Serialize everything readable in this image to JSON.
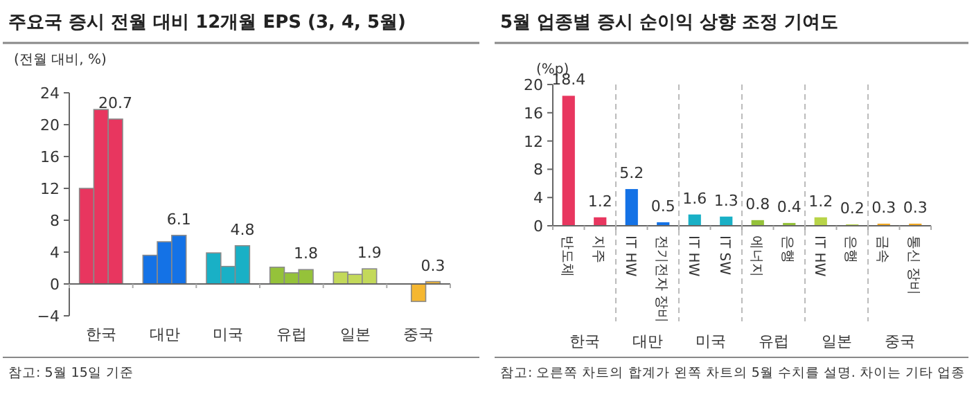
{
  "chart_data": [
    {
      "type": "bar",
      "title": "주요국 증시 전월 대비 12개월 EPS (3, 4, 5월)",
      "ylabel": "(전월 대비, %)",
      "categories": [
        "한국",
        "대만",
        "미국",
        "유럽",
        "일본",
        "중국"
      ],
      "ylim": [
        -4,
        24
      ],
      "yticks": [
        -4,
        0,
        4,
        8,
        12,
        16,
        20,
        24
      ],
      "series": [
        {
          "values": [
            12.0,
            3.6,
            3.9,
            2.1,
            1.5,
            null
          ],
          "colors": [
            "#e8365f",
            "#1472e6",
            "#19b0c6",
            "#95c23a",
            "#c3d95a",
            null
          ]
        },
        {
          "values": [
            21.9,
            5.3,
            2.2,
            1.4,
            1.2,
            -2.2
          ],
          "colors": [
            "#e8365f",
            "#1472e6",
            "#19b0c6",
            "#95c23a",
            "#c3d95a",
            "#f5b731"
          ]
        },
        {
          "values": [
            20.7,
            6.1,
            4.8,
            1.8,
            1.9,
            0.3
          ],
          "colors": [
            "#e8365f",
            "#1472e6",
            "#19b0c6",
            "#95c23a",
            "#c3d95a",
            "#f5b731"
          ],
          "value_labels": [
            "20.7",
            "6.1",
            "4.8",
            "1.8",
            "1.9",
            "0.3"
          ]
        }
      ],
      "annotations": [
        "참고: 5월 15일 기준"
      ]
    },
    {
      "type": "bar",
      "title": "5월 업종별 증시 순이익 상향 조정 기여도",
      "ylabel": "(%p)",
      "categories": [
        "반도체",
        "지주",
        "IT HW",
        "전기전자 장비",
        "IT HW",
        "IT SW",
        "에너지",
        "은행",
        "IT HW",
        "은행",
        "금속",
        "통신 장비"
      ],
      "ylim": [
        0,
        20
      ],
      "yticks": [
        0,
        4,
        8,
        12,
        16,
        20
      ],
      "data_labels": true,
      "series": [
        {
          "values": [
            18.4,
            1.2,
            5.2,
            0.5,
            1.6,
            1.3,
            0.8,
            0.4,
            1.2,
            0.2,
            0.3,
            0.3
          ],
          "colors": [
            "#e8365f",
            "#e8365f",
            "#1472e6",
            "#1472e6",
            "#19b0c6",
            "#19b0c6",
            "#95c23a",
            "#95c23a",
            "#b8d448",
            "#b8d448",
            "#f0a823",
            "#f0a823"
          ]
        }
      ],
      "annotations": [
        "한국",
        "대만",
        "미국",
        "유럽",
        "일본",
        "중국",
        "참고: 오른쪽 차트의 합계가 왼쪽 차트의 5월 수치를 설명. 차이는 기타 업종"
      ]
    }
  ]
}
